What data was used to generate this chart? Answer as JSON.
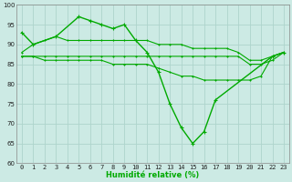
{
  "x": [
    0,
    1,
    2,
    3,
    4,
    5,
    6,
    7,
    8,
    9,
    10,
    11,
    12,
    13,
    14,
    15,
    16,
    17,
    18,
    19,
    20,
    21,
    22,
    23
  ],
  "line_main": [
    93,
    90,
    null,
    92,
    null,
    97,
    96,
    95,
    94,
    95,
    91,
    88,
    83,
    75,
    69,
    65,
    68,
    76,
    null,
    null,
    null,
    null,
    87,
    88
  ],
  "line_high": [
    88,
    90,
    91,
    92,
    91,
    91,
    91,
    91,
    91,
    91,
    91,
    91,
    90,
    90,
    90,
    89,
    89,
    89,
    89,
    88,
    86,
    86,
    87,
    88
  ],
  "line_mid": [
    87,
    87,
    87,
    87,
    87,
    87,
    87,
    87,
    87,
    87,
    87,
    87,
    87,
    87,
    87,
    87,
    87,
    87,
    87,
    87,
    85,
    85,
    86,
    88
  ],
  "line_low": [
    87,
    87,
    86,
    86,
    86,
    86,
    86,
    86,
    85,
    85,
    85,
    85,
    84,
    83,
    82,
    82,
    81,
    81,
    81,
    81,
    81,
    82,
    87,
    88
  ],
  "xlabel": "Humidité relative (%)",
  "ylim": [
    60,
    100
  ],
  "xlim_min": -0.5,
  "xlim_max": 23.5,
  "yticks": [
    60,
    65,
    70,
    75,
    80,
    85,
    90,
    95,
    100
  ],
  "xticks": [
    0,
    1,
    2,
    3,
    4,
    5,
    6,
    7,
    8,
    9,
    10,
    11,
    12,
    13,
    14,
    15,
    16,
    17,
    18,
    19,
    20,
    21,
    22,
    23
  ],
  "grid_color": "#aed4cc",
  "bg_color": "#cceae4",
  "line_color": "#00aa00",
  "marker": "+"
}
